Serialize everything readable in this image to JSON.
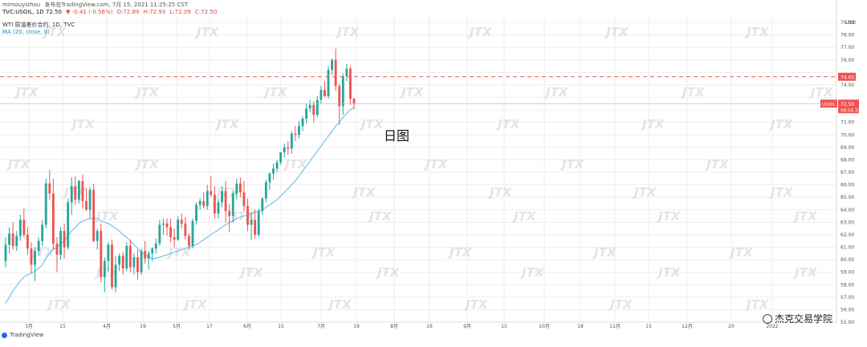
{
  "header": {
    "line1": {
      "author": "mimouyizhou",
      "published": "发布在TradingView.com, 7月 15, 2021 11:25:25 CST",
      "symbol": "TVC:USOIL, 1D",
      "o": "O:72.89",
      "h": "H:72.93",
      "l": "L:72.09",
      "c": "C:72.50"
    },
    "line2": {
      "symbol": "TVC:USOIL, 1D 72.50",
      "change": "▼ -0.41 (-0.56%)",
      "o": "O:72.89",
      "h": "H:72.93",
      "l": "L:72.09",
      "c": "C:72.50"
    },
    "line3": "WTI 原油差价合约, 1D, TVC",
    "line4": "MA (20, close, 0)"
  },
  "annotation": "日图",
  "brand": "TradingView",
  "watermark_text": "JTX",
  "wechat_watermark": "杰克交易学院",
  "colors": {
    "up": "#26a69a",
    "down": "#ef5350",
    "ma": "#6ec6ec",
    "ref_line": "#ef5350",
    "grid": "#eeeeee",
    "axis_text": "#555555",
    "watermark": "#cfcfcf"
  },
  "chart_data": {
    "type": "candlestick",
    "y_axis_label": "",
    "y_currency": "USD",
    "ylim": [
      55.0,
      79.0
    ],
    "y_ticks": [
      "79.00",
      "78.00",
      "77.00",
      "76.00",
      "75.00",
      "74.00",
      "73.00",
      "72.00",
      "71.00",
      "70.00",
      "69.00",
      "68.00",
      "67.00",
      "66.00",
      "65.00",
      "64.00",
      "63.00",
      "62.00",
      "61.00",
      "60.00",
      "59.00",
      "58.00",
      "57.00",
      "56.00",
      "55.00"
    ],
    "x_labels": [
      "3月",
      "15",
      "4月",
      "19",
      "5月",
      "17",
      "6月",
      "15",
      "7月",
      "19",
      "8月",
      "16",
      "9月",
      "15",
      "10月",
      "18",
      "11月",
      "15",
      "12月",
      "20",
      "2022"
    ],
    "last_price_label": "USOIL",
    "last_price": "72.50",
    "countdown": "08:54:35",
    "ref_line_price": "74.65",
    "ma_period": 20,
    "grid": true,
    "ohlc": [
      [
        59.9,
        61.8,
        59.4,
        61.2
      ],
      [
        61.2,
        62.6,
        60.5,
        62.1
      ],
      [
        62.1,
        63.0,
        60.8,
        61.1
      ],
      [
        61.1,
        62.3,
        60.7,
        61.9
      ],
      [
        61.9,
        63.6,
        61.5,
        63.2
      ],
      [
        63.2,
        64.1,
        61.8,
        62.0
      ],
      [
        62.0,
        62.6,
        60.4,
        60.9
      ],
      [
        60.9,
        61.4,
        58.9,
        59.6
      ],
      [
        59.6,
        61.0,
        58.3,
        60.7
      ],
      [
        60.7,
        61.8,
        60.3,
        61.5
      ],
      [
        61.5,
        63.2,
        61.1,
        62.8
      ],
      [
        62.8,
        66.5,
        62.5,
        66.1
      ],
      [
        66.1,
        67.2,
        64.8,
        65.3
      ],
      [
        65.3,
        66.5,
        60.8,
        61.3
      ],
      [
        61.3,
        61.8,
        59.0,
        60.4
      ],
      [
        60.4,
        62.6,
        60.0,
        62.3
      ],
      [
        62.3,
        62.9,
        60.1,
        61.0
      ],
      [
        61.0,
        64.9,
        60.8,
        64.6
      ],
      [
        64.6,
        66.6,
        63.6,
        65.9
      ],
      [
        65.9,
        66.7,
        64.4,
        64.8
      ],
      [
        64.8,
        66.4,
        64.5,
        66.3
      ],
      [
        66.3,
        66.8,
        64.1,
        64.7
      ],
      [
        64.7,
        65.7,
        63.9,
        64.0
      ],
      [
        64.0,
        65.8,
        63.3,
        65.6
      ],
      [
        65.6,
        66.1,
        61.4,
        61.5
      ],
      [
        61.5,
        62.5,
        60.8,
        62.3
      ],
      [
        62.3,
        62.9,
        58.2,
        58.6
      ],
      [
        58.6,
        60.2,
        57.4,
        59.9
      ],
      [
        59.9,
        61.4,
        59.0,
        61.2
      ],
      [
        61.2,
        61.6,
        57.6,
        57.8
      ],
      [
        57.8,
        60.3,
        57.4,
        59.6
      ],
      [
        59.6,
        60.5,
        59.1,
        60.3
      ],
      [
        60.3,
        60.6,
        58.8,
        59.3
      ],
      [
        59.3,
        61.4,
        59.1,
        61.1
      ],
      [
        61.1,
        61.6,
        59.0,
        59.4
      ],
      [
        59.4,
        60.5,
        58.8,
        60.2
      ],
      [
        60.2,
        60.8,
        58.4,
        59.0
      ],
      [
        59.0,
        60.9,
        58.8,
        60.7
      ],
      [
        60.7,
        61.5,
        59.7,
        60.1
      ],
      [
        60.1,
        60.7,
        59.2,
        60.5
      ],
      [
        60.5,
        61.0,
        59.9,
        60.9
      ],
      [
        60.9,
        61.7,
        60.5,
        61.3
      ],
      [
        61.3,
        63.2,
        61.1,
        62.8
      ],
      [
        62.8,
        63.3,
        62.0,
        62.9
      ],
      [
        62.9,
        63.3,
        61.9,
        62.6
      ],
      [
        62.6,
        63.3,
        61.4,
        61.8
      ],
      [
        61.8,
        62.5,
        61.0,
        61.6
      ],
      [
        61.6,
        63.5,
        61.5,
        63.2
      ],
      [
        63.2,
        63.7,
        62.5,
        62.9
      ],
      [
        62.9,
        63.4,
        61.6,
        61.9
      ],
      [
        61.9,
        62.1,
        60.8,
        61.1
      ],
      [
        61.1,
        63.3,
        60.9,
        63.1
      ],
      [
        63.1,
        64.6,
        62.8,
        64.4
      ],
      [
        64.4,
        64.9,
        64.0,
        64.7
      ],
      [
        64.7,
        65.4,
        64.1,
        64.3
      ],
      [
        64.3,
        66.0,
        64.0,
        65.5
      ],
      [
        65.5,
        66.7,
        65.0,
        65.2
      ],
      [
        65.2,
        65.9,
        63.3,
        63.7
      ],
      [
        63.7,
        64.9,
        63.3,
        64.6
      ],
      [
        64.6,
        65.9,
        64.2,
        65.5
      ],
      [
        65.5,
        66.3,
        63.0,
        63.9
      ],
      [
        63.9,
        64.5,
        62.2,
        63.5
      ],
      [
        63.5,
        65.5,
        63.0,
        65.3
      ],
      [
        65.3,
        66.5,
        64.8,
        66.1
      ],
      [
        66.1,
        66.6,
        65.0,
        65.4
      ],
      [
        65.4,
        66.3,
        63.9,
        64.3
      ],
      [
        64.3,
        64.9,
        62.3,
        62.8
      ],
      [
        62.8,
        63.8,
        61.6,
        63.2
      ],
      [
        63.2,
        64.0,
        61.7,
        62.0
      ],
      [
        62.0,
        64.1,
        61.8,
        63.9
      ],
      [
        63.9,
        65.0,
        63.6,
        64.9
      ],
      [
        64.9,
        66.4,
        64.6,
        66.2
      ],
      [
        66.2,
        67.0,
        65.6,
        66.9
      ],
      [
        66.9,
        67.7,
        66.4,
        67.3
      ],
      [
        67.3,
        68.0,
        67.0,
        67.8
      ],
      [
        67.8,
        68.6,
        67.6,
        68.6
      ],
      [
        68.6,
        69.3,
        68.2,
        69.0
      ],
      [
        69.0,
        69.5,
        68.4,
        68.9
      ],
      [
        68.9,
        70.3,
        68.5,
        70.1
      ],
      [
        70.1,
        70.7,
        69.5,
        70.0
      ],
      [
        70.0,
        71.1,
        69.7,
        70.7
      ],
      [
        70.7,
        71.5,
        70.3,
        71.3
      ],
      [
        71.3,
        72.5,
        70.9,
        72.1
      ],
      [
        72.1,
        72.8,
        71.8,
        72.4
      ],
      [
        72.4,
        72.7,
        71.0,
        71.6
      ],
      [
        71.6,
        73.1,
        71.4,
        72.8
      ],
      [
        72.8,
        73.9,
        72.5,
        73.6
      ],
      [
        73.6,
        74.3,
        73.0,
        73.1
      ],
      [
        73.1,
        75.5,
        72.9,
        75.2
      ],
      [
        75.2,
        76.1,
        74.8,
        76.0
      ],
      [
        76.0,
        76.9,
        73.5,
        73.9
      ],
      [
        73.9,
        74.1,
        70.8,
        72.3
      ],
      [
        72.3,
        74.9,
        71.6,
        74.7
      ],
      [
        74.7,
        75.7,
        74.3,
        75.3
      ],
      [
        75.3,
        75.5,
        72.4,
        72.9
      ],
      [
        72.9,
        72.93,
        72.09,
        72.5
      ]
    ],
    "ma": [
      56.5,
      57.0,
      57.5,
      57.9,
      58.3,
      58.6,
      58.8,
      58.9,
      59.1,
      59.3,
      59.6,
      60.1,
      60.5,
      60.8,
      61.0,
      61.3,
      61.5,
      61.9,
      62.3,
      62.6,
      62.9,
      63.1,
      63.2,
      63.3,
      63.3,
      63.3,
      63.1,
      63.0,
      62.9,
      62.7,
      62.5,
      62.3,
      62.0,
      61.8,
      61.5,
      61.2,
      60.9,
      60.6,
      60.4,
      60.2,
      60.1,
      60.1,
      60.2,
      60.3,
      60.4,
      60.5,
      60.6,
      60.7,
      60.8,
      60.9,
      61.0,
      61.1,
      61.2,
      61.4,
      61.6,
      61.8,
      62.0,
      62.2,
      62.4,
      62.6,
      62.8,
      63.0,
      63.1,
      63.3,
      63.4,
      63.5,
      63.6,
      63.7,
      63.8,
      63.9,
      64.0,
      64.2,
      64.4,
      64.6,
      64.8,
      65.1,
      65.4,
      65.7,
      66.0,
      66.3,
      66.7,
      67.1,
      67.5,
      67.9,
      68.3,
      68.7,
      69.1,
      69.5,
      69.9,
      70.3,
      70.7,
      71.0,
      71.4,
      71.7,
      72.0,
      72.2
    ]
  }
}
